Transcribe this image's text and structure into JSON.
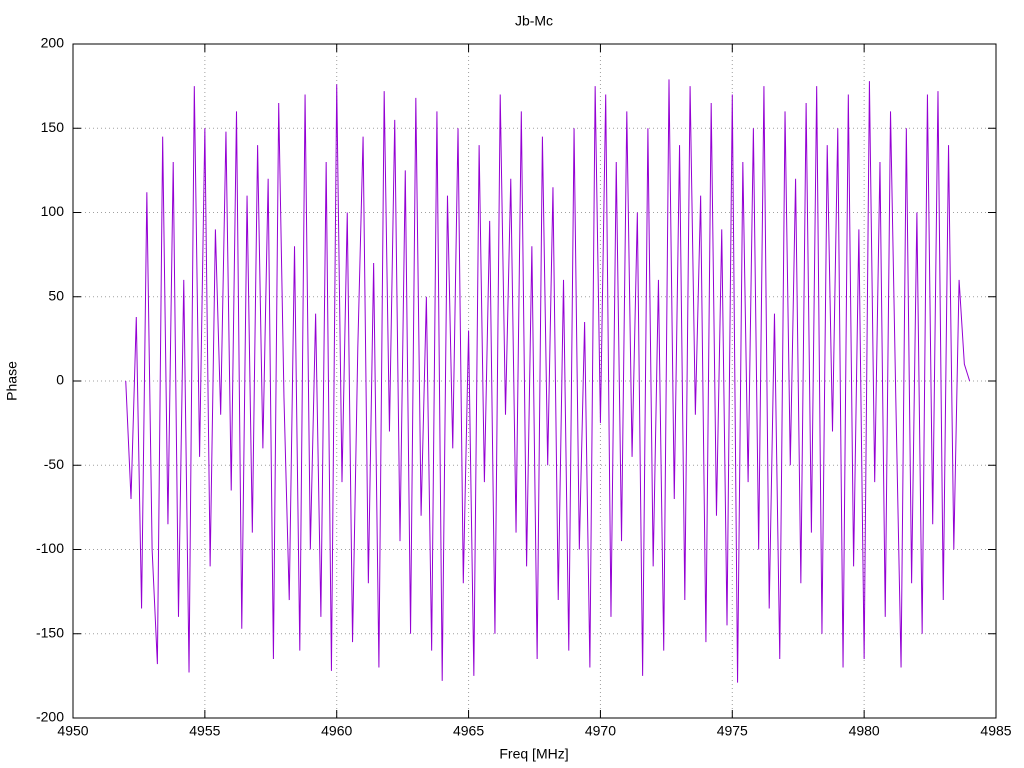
{
  "chart_data": {
    "type": "line",
    "title": "Jb-Mc",
    "x_label": "Freq [MHz]",
    "y_label": "Phase",
    "xlim": [
      4950,
      4985
    ],
    "ylim": [
      -200,
      200
    ],
    "xticks": [
      4950,
      4955,
      4960,
      4965,
      4970,
      4975,
      4980,
      4985
    ],
    "yticks": [
      -200,
      -150,
      -100,
      -50,
      0,
      50,
      100,
      150,
      200
    ],
    "grid": true,
    "x": [
      4952,
      4952.2,
      4952.4,
      4952.6,
      4952.8,
      4953,
      4953.2,
      4953.4,
      4953.6,
      4953.8,
      4954,
      4954.2,
      4954.4,
      4954.6,
      4954.8,
      4955,
      4955.2,
      4955.4,
      4955.6,
      4955.8,
      4956,
      4956.2,
      4956.4,
      4956.6,
      4956.8,
      4957,
      4957.2,
      4957.4,
      4957.6,
      4957.8,
      4958,
      4958.2,
      4958.4,
      4958.6,
      4958.8,
      4959,
      4959.2,
      4959.4,
      4959.6,
      4959.8,
      4960,
      4960.2,
      4960.4,
      4960.6,
      4960.8,
      4961,
      4961.2,
      4961.4,
      4961.6,
      4961.8,
      4962,
      4962.2,
      4962.4,
      4962.6,
      4962.8,
      4963,
      4963.2,
      4963.4,
      4963.6,
      4963.8,
      4964,
      4964.2,
      4964.4,
      4964.6,
      4964.8,
      4965,
      4965.2,
      4965.4,
      4965.6,
      4965.8,
      4966,
      4966.2,
      4966.4,
      4966.6,
      4966.8,
      4967,
      4967.2,
      4967.4,
      4967.6,
      4967.8,
      4968,
      4968.2,
      4968.4,
      4968.6,
      4968.8,
      4969,
      4969.2,
      4969.4,
      4969.6,
      4969.8,
      4970,
      4970.2,
      4970.4,
      4970.6,
      4970.8,
      4971,
      4971.2,
      4971.4,
      4971.6,
      4971.8,
      4972,
      4972.2,
      4972.4,
      4972.6,
      4972.8,
      4973,
      4973.2,
      4973.4,
      4973.6,
      4973.8,
      4974,
      4974.2,
      4974.4,
      4974.6,
      4974.8,
      4975,
      4975.2,
      4975.4,
      4975.6,
      4975.8,
      4976,
      4976.2,
      4976.4,
      4976.6,
      4976.8,
      4977,
      4977.2,
      4977.4,
      4977.6,
      4977.8,
      4978,
      4978.2,
      4978.4,
      4978.6,
      4978.8,
      4979,
      4979.2,
      4979.4,
      4979.6,
      4979.8,
      4980,
      4980.2,
      4980.4,
      4980.6,
      4980.8,
      4981,
      4981.2,
      4981.4,
      4981.6,
      4981.8,
      4982,
      4982.2,
      4982.4,
      4982.6,
      4982.8,
      4983,
      4983.2,
      4983.4,
      4983.6,
      4983.8,
      4984
    ],
    "series": [
      {
        "name": "Jb-Mc",
        "color": "#9400d3",
        "values": [
          0,
          -70,
          38,
          -135,
          112,
          -100,
          -168,
          145,
          -85,
          130,
          -140,
          60,
          -173,
          175,
          -45,
          150,
          -110,
          90,
          -20,
          148,
          -65,
          160,
          -147,
          110,
          -90,
          140,
          -40,
          120,
          -165,
          165,
          -10,
          -130,
          80,
          -160,
          170,
          -100,
          40,
          -140,
          130,
          -172,
          176,
          -60,
          100,
          -155,
          20,
          145,
          -120,
          70,
          -170,
          172,
          -30,
          155,
          -95,
          125,
          -150,
          168,
          -80,
          50,
          -160,
          160,
          -178,
          110,
          -40,
          150,
          -120,
          30,
          -175,
          140,
          -60,
          95,
          -150,
          170,
          -20,
          120,
          -90,
          160,
          -110,
          80,
          -165,
          145,
          -50,
          115,
          -130,
          60,
          -160,
          150,
          -100,
          35,
          -170,
          175,
          -25,
          170,
          -140,
          130,
          -95,
          160,
          -45,
          100,
          -175,
          150,
          -110,
          60,
          -160,
          179,
          -70,
          140,
          -130,
          175,
          -20,
          110,
          -155,
          165,
          -80,
          90,
          -145,
          170,
          -179,
          130,
          -60,
          150,
          -100,
          175,
          -135,
          40,
          -165,
          160,
          -50,
          120,
          -120,
          165,
          -90,
          175,
          -150,
          140,
          -30,
          150,
          -170,
          170,
          -110,
          90,
          -165,
          178,
          -60,
          130,
          -140,
          160,
          -10,
          -170,
          150,
          -120,
          100,
          -150,
          170,
          -85,
          172,
          -130,
          140,
          -100,
          60,
          10,
          0
        ]
      }
    ]
  }
}
